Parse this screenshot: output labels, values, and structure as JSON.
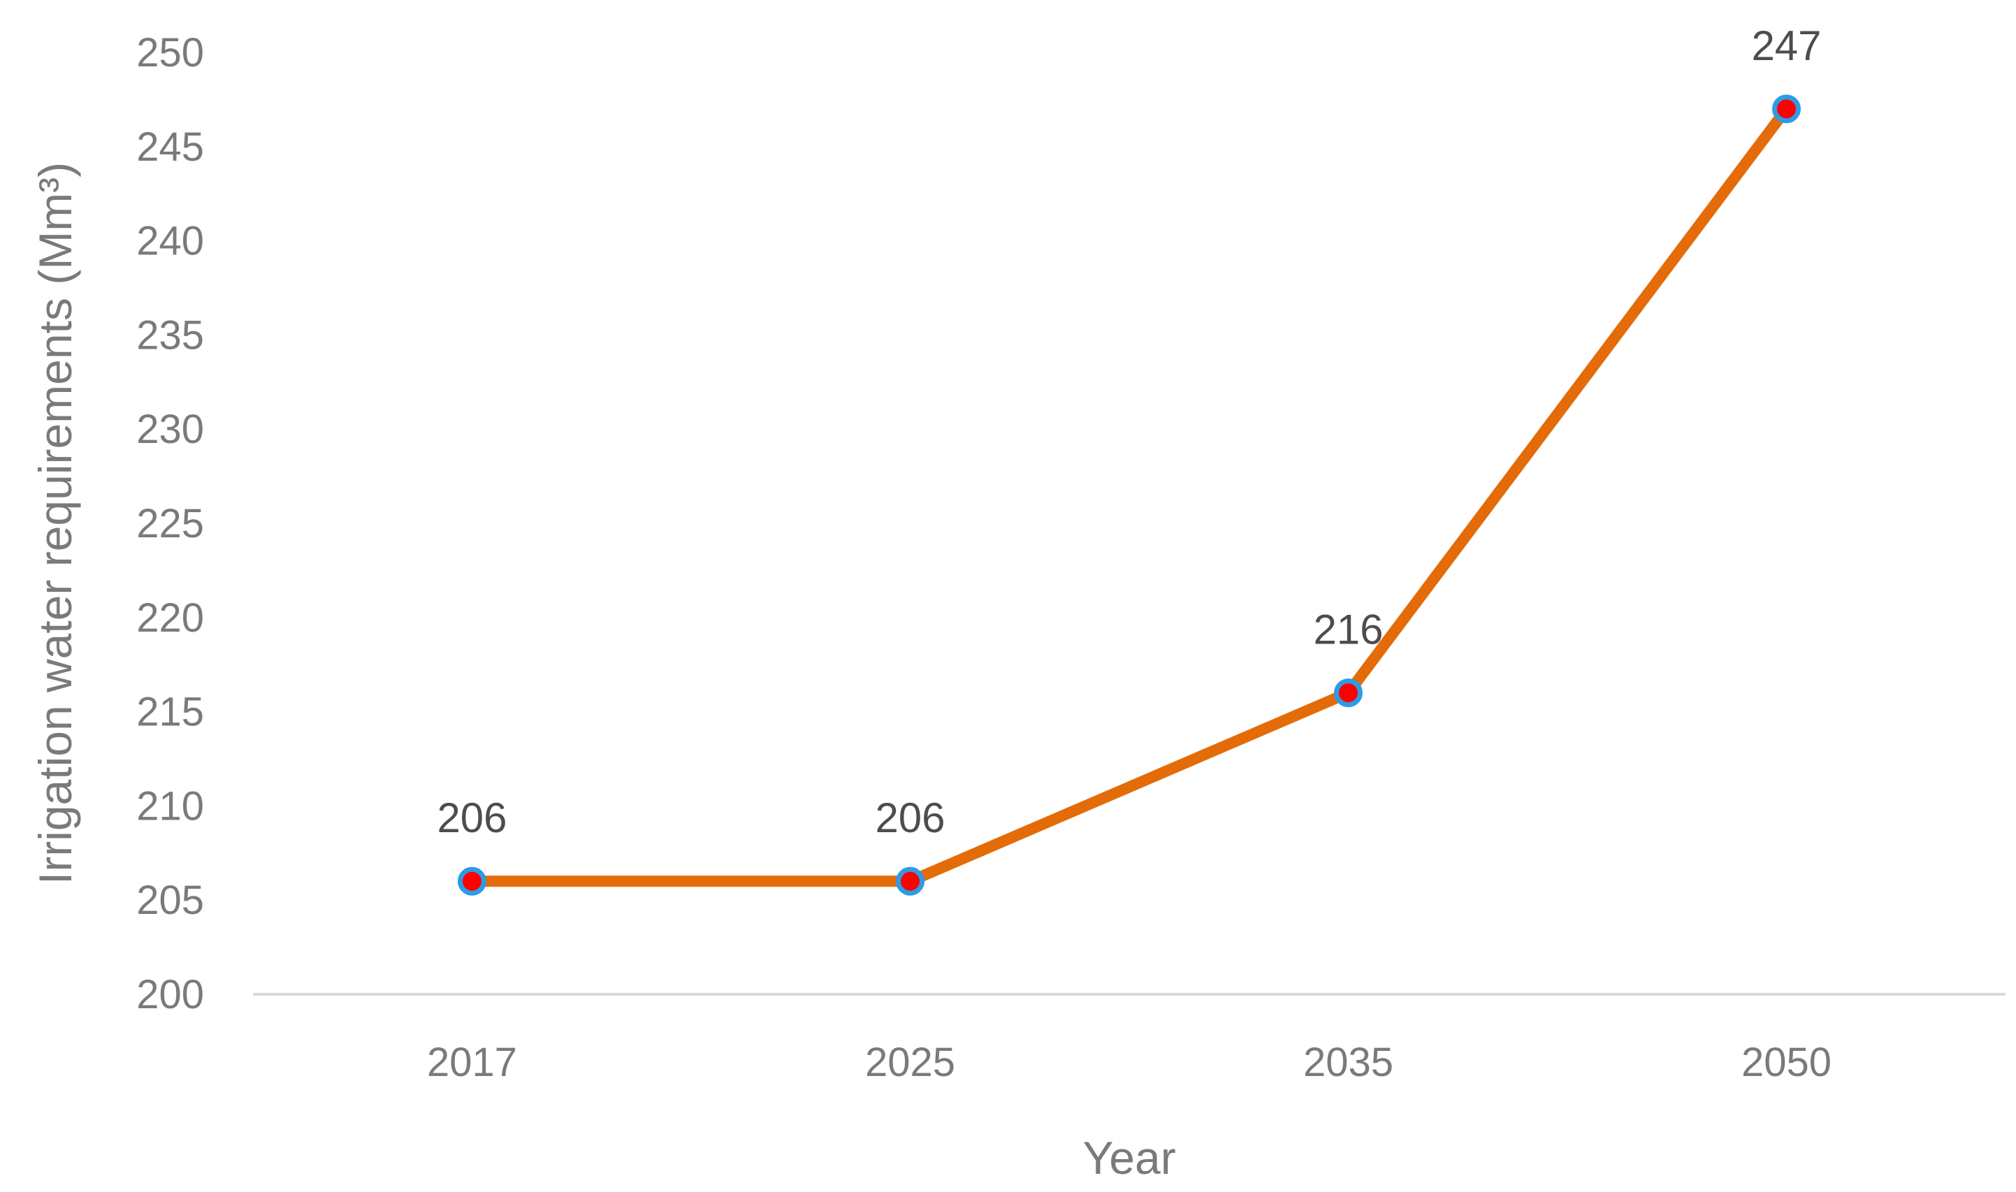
{
  "chart_data": {
    "type": "line",
    "categories": [
      "2017",
      "2025",
      "2035",
      "2050"
    ],
    "series": [
      {
        "values": [
          206,
          206,
          216,
          247
        ]
      }
    ],
    "data_labels": [
      "206",
      "206",
      "216",
      "247"
    ],
    "title": "",
    "xlabel": "Year",
    "ylabel": "Irrigation water requirements (Mm³)",
    "ylim": [
      200,
      250
    ],
    "yticks": [
      "200",
      "205",
      "210",
      "215",
      "220",
      "225",
      "230",
      "235",
      "240",
      "245",
      "250"
    ],
    "grid": false,
    "legend": "none",
    "colors": {
      "line": "#e36c09",
      "marker_fill": "#ff0000",
      "marker_edge": "#2e9be5",
      "axis": "#d9d9d9",
      "text": "#7a7a7a",
      "label_text": "#4d4d4d"
    }
  }
}
